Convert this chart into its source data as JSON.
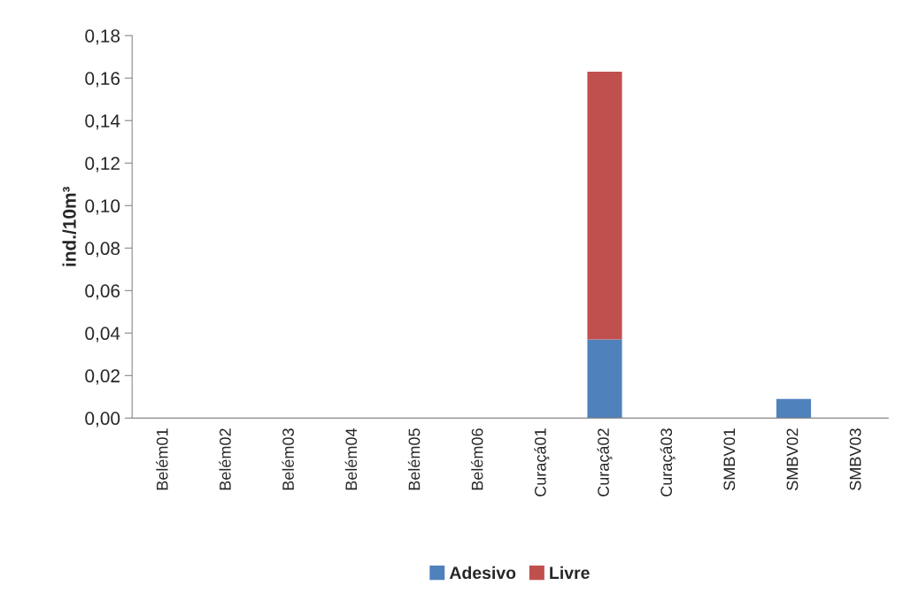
{
  "chart_data": {
    "type": "bar",
    "stacked": true,
    "ylabel": "ind./10m³",
    "categories": [
      "Belém01",
      "Belém02",
      "Belém03",
      "Belém04",
      "Belém05",
      "Belém06",
      "Curaçá01",
      "Curaçá02",
      "Curaçá03",
      "SMBV01",
      "SMBV02",
      "SMBV03"
    ],
    "series": [
      {
        "name": "Adesivo",
        "color": "#4f81bd",
        "values": [
          0,
          0,
          0,
          0,
          0,
          0,
          0,
          0.037,
          0,
          0,
          0.009,
          0
        ]
      },
      {
        "name": "Livre",
        "color": "#c0504d",
        "values": [
          0,
          0,
          0,
          0,
          0,
          0,
          0,
          0.126,
          0,
          0,
          0,
          0
        ]
      }
    ],
    "ylim": [
      0,
      0.18
    ],
    "yticks": [
      {
        "value": 0,
        "label": "0,00"
      },
      {
        "value": 0.02,
        "label": "0,02"
      },
      {
        "value": 0.04,
        "label": "0,04"
      },
      {
        "value": 0.06,
        "label": "0,06"
      },
      {
        "value": 0.08,
        "label": "0,08"
      },
      {
        "value": 0.1,
        "label": "0,10"
      },
      {
        "value": 0.12,
        "label": "0,12"
      },
      {
        "value": 0.14,
        "label": "0,14"
      },
      {
        "value": 0.16,
        "label": "0,16"
      },
      {
        "value": 0.18,
        "label": "0,18"
      }
    ],
    "legend": "bottom",
    "grid": false
  }
}
